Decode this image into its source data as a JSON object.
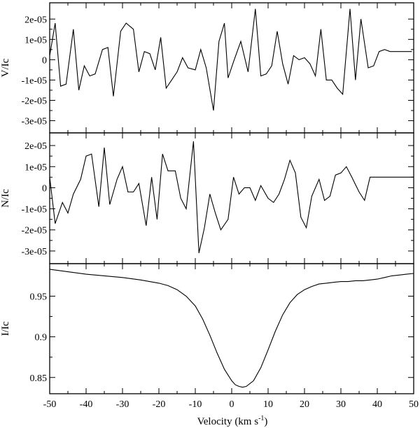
{
  "chart_data": [
    {
      "type": "line",
      "ylabel": "V/Ic",
      "ylim": [
        -3.6e-05,
        2.8e-05
      ],
      "xlim": [
        -50,
        50
      ],
      "yticks": [
        2e-05,
        1e-05,
        0,
        -1e-05,
        -2e-05,
        -3e-05
      ],
      "ytick_labels": [
        "2e-05",
        "1e-05",
        "0",
        "-1e-05",
        "-2e-05",
        "-3e-05"
      ],
      "series": [
        {
          "x": [
            -50,
            -48.5,
            -47,
            -45.5,
            -43.5,
            -42,
            -40.5,
            -39,
            -37.5,
            -35.5,
            -34,
            -32.5,
            -30.5,
            -29,
            -27,
            -25.5,
            -24,
            -22.5,
            -21,
            -19.5,
            -18,
            -16.5,
            -15,
            -13.5,
            -12,
            -10,
            -8.5,
            -7,
            -5,
            -3.5,
            -2,
            -1,
            0.5,
            2.5,
            4.5,
            6.5,
            8,
            9.5,
            11,
            12.5,
            14,
            15.5,
            17,
            18.5,
            20,
            21.5,
            23,
            24.5,
            26,
            27.5,
            29,
            30.5,
            32.5,
            34,
            35.5,
            37.5,
            39,
            40.5,
            42,
            43.5,
            45,
            46.5,
            48,
            49.5
          ],
          "y": [
            2e-06,
            1.8e-05,
            -1.3e-05,
            -1.2e-05,
            1.5e-05,
            -1.5e-05,
            -3e-06,
            -8e-06,
            -7e-06,
            5e-06,
            6e-06,
            -1.8e-05,
            1.4e-05,
            1.8e-05,
            1.5e-05,
            -6e-06,
            4e-06,
            3e-06,
            -5e-06,
            1.1e-05,
            -1.4e-05,
            -1e-05,
            -6e-06,
            1e-06,
            -4e-06,
            -5e-06,
            5e-06,
            -4e-06,
            -2.5e-05,
            9e-06,
            1.8e-05,
            -9e-06,
            -1e-06,
            9e-06,
            -6e-06,
            2.5e-05,
            -8e-06,
            -7e-06,
            -3e-06,
            1.4e-05,
            -2e-06,
            -1.2e-05,
            2e-06,
            0,
            1e-06,
            -2e-06,
            -8e-06,
            1.5e-05,
            -1e-05,
            -1e-05,
            -1.4e-05,
            -1.7e-05,
            2.5e-05,
            -1e-05,
            2e-05,
            -4e-06,
            -3e-06,
            4e-06,
            5e-06,
            4e-06,
            4e-06,
            4e-06,
            4e-06,
            4e-06
          ]
        }
      ]
    },
    {
      "type": "line",
      "ylabel": "N/Ic",
      "ylim": [
        -3.6e-05,
        2.6e-05
      ],
      "xlim": [
        -50,
        50
      ],
      "yticks": [
        2e-05,
        1e-05,
        0,
        -1e-05,
        -2e-05,
        -3e-05
      ],
      "ytick_labels": [
        "2e-05",
        "1e-05",
        "0",
        "-1e-05",
        "-2e-05",
        "-3e-05"
      ],
      "series": [
        {
          "x": [
            -50,
            -48.5,
            -46.5,
            -45,
            -43.5,
            -41.5,
            -40,
            -38.5,
            -36.5,
            -35,
            -33.5,
            -31.5,
            -30,
            -28.5,
            -27,
            -25.5,
            -23.5,
            -22,
            -20.5,
            -19,
            -17.5,
            -15.5,
            -14,
            -12.5,
            -10.5,
            -9,
            -7.5,
            -6,
            -4.5,
            -3,
            -1,
            0.5,
            2,
            3.5,
            5,
            6.5,
            8,
            10,
            11.5,
            13,
            14.5,
            16,
            17.5,
            19,
            20.5,
            22,
            24,
            25.5,
            27,
            28.5,
            30,
            31.5,
            33,
            35,
            36.5,
            38,
            39.5,
            41,
            42.5,
            44,
            45.5,
            47,
            48.5,
            50
          ],
          "y": [
            5e-06,
            -1.7e-05,
            -7e-06,
            -1.2e-05,
            -3e-06,
            4e-06,
            1.5e-05,
            1.6e-05,
            -9e-06,
            1.9e-05,
            -8e-06,
            4e-06,
            1e-05,
            -2e-06,
            -2e-06,
            2e-06,
            -1.8e-05,
            5e-06,
            -1.5e-05,
            1.6e-05,
            8e-06,
            8e-06,
            -5e-06,
            -1e-05,
            2.2e-05,
            -3.1e-05,
            -1.9e-05,
            -3e-06,
            -1.2e-05,
            -2e-05,
            -1.5e-05,
            5e-06,
            -3e-06,
            0,
            0,
            -6e-06,
            1e-06,
            -5e-06,
            -7e-06,
            -3e-06,
            4e-06,
            1.3e-05,
            7e-06,
            -1.4e-05,
            -1.9e-05,
            -4e-06,
            4e-06,
            -6e-06,
            -4e-06,
            6e-06,
            7e-06,
            1e-05,
            5e-06,
            -2e-06,
            -6e-06,
            5e-06,
            5e-06,
            5e-06,
            5e-06,
            5e-06,
            5e-06,
            5e-06,
            5e-06,
            5e-06
          ]
        }
      ]
    },
    {
      "type": "line",
      "ylabel": "I/Ic",
      "xlabel": "Velocity (km s",
      "xlabel_sup": "-1",
      "xlabel_close": ")",
      "ylim": [
        0.83,
        0.99
      ],
      "xlim": [
        -50,
        50
      ],
      "xticks": [
        -50,
        -40,
        -30,
        -20,
        -10,
        0,
        10,
        20,
        30,
        40,
        50
      ],
      "xtick_labels": [
        "-50",
        "-40",
        "-30",
        "-20",
        "-10",
        "0",
        "10",
        "20",
        "30",
        "40",
        "50"
      ],
      "yticks": [
        0.95,
        0.9,
        0.85
      ],
      "ytick_labels": [
        "0.95",
        "0.9",
        "0.85"
      ],
      "series": [
        {
          "x": [
            -50,
            -45,
            -40,
            -35,
            -30,
            -25,
            -20,
            -17.5,
            -15,
            -12.5,
            -10,
            -8,
            -6,
            -4,
            -2,
            0,
            1,
            2,
            3,
            4,
            6,
            8,
            10,
            12,
            14,
            16,
            18,
            20,
            22,
            24,
            26,
            28,
            30,
            32,
            34,
            36,
            38,
            40,
            42,
            44,
            46,
            48,
            50
          ],
          "y": [
            0.983,
            0.98,
            0.977,
            0.975,
            0.973,
            0.97,
            0.966,
            0.963,
            0.958,
            0.95,
            0.938,
            0.922,
            0.902,
            0.88,
            0.86,
            0.846,
            0.841,
            0.839,
            0.838,
            0.839,
            0.846,
            0.862,
            0.884,
            0.907,
            0.927,
            0.942,
            0.952,
            0.958,
            0.962,
            0.965,
            0.966,
            0.967,
            0.968,
            0.968,
            0.969,
            0.969,
            0.97,
            0.971,
            0.973,
            0.975,
            0.976,
            0.977,
            0.978
          ]
        }
      ]
    }
  ]
}
